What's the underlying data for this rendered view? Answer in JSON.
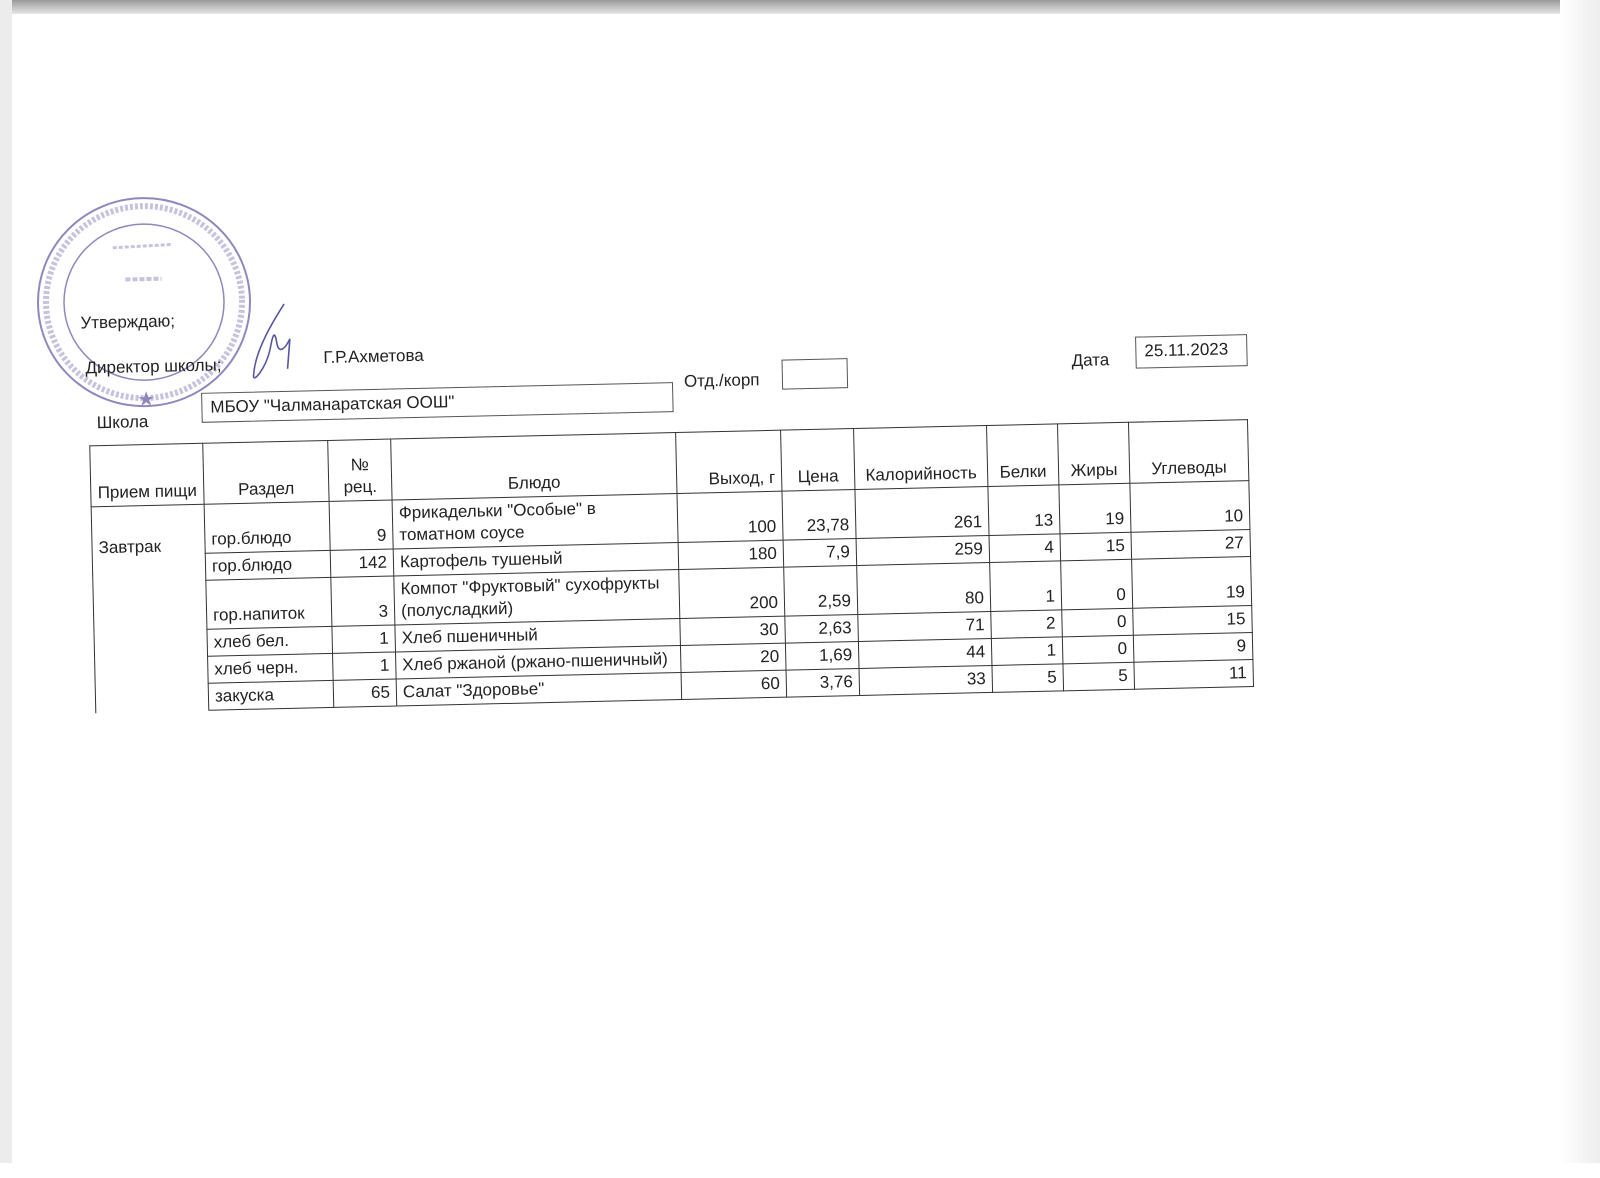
{
  "approval": {
    "approve": "Утверждаю;",
    "position": "Директор школы;",
    "name": "Г.Р.Ахметова"
  },
  "stamp": {
    "center": "МБОУ «Чалманаратская ООШ»",
    "ring": "МУНИЦИПАЛЬНОЕ БЮДЖЕТНОЕ ОБЩЕОБРАЗОВАТЕЛЬНОЕ УЧРЕЖДЕНИЕ «ЧАЛМАНАРАТСКАЯ ОСНОВНАЯ ОБЩЕОБРАЗОВАТЕЛЬНАЯ ШКОЛА» АКТАНЫШСКОГО",
    "ogrn": "ОГРН 1031632...",
    "inn": "ИНН 1604005718",
    "color": "#6b5fa8"
  },
  "header": {
    "school_label": "Школа",
    "school_value": "МБОУ \"Чалманаратская ООШ\"",
    "dept_label": "Отд./корп",
    "dept_value": "",
    "date_label": "Дата",
    "date_value": "25.11.2023"
  },
  "table": {
    "columns": [
      "Прием пищи",
      "Раздел",
      "№ рец.",
      "Блюдо",
      "Выход, г",
      "Цена",
      "Калорийность",
      "Белки",
      "Жиры",
      "Углеводы"
    ],
    "meal": "Завтрак",
    "rows": [
      {
        "section": "гор.блюдо",
        "recipe": "9",
        "dish": "Фрикадельки \"Особые\" в томатном соусе",
        "yield": "100",
        "price": "23,78",
        "kcal": "261",
        "protein": "13",
        "fat": "19",
        "carbs": "10"
      },
      {
        "section": "гор.блюдо",
        "recipe": "142",
        "dish": "Картофель тушеный",
        "yield": "180",
        "price": "7,9",
        "kcal": "259",
        "protein": "4",
        "fat": "15",
        "carbs": "27"
      },
      {
        "section": "гор.напиток",
        "recipe": "3",
        "dish": "Компот \"Фруктовый\" сухофрукты (полусладкий)",
        "yield": "200",
        "price": "2,59",
        "kcal": "80",
        "protein": "1",
        "fat": "0",
        "carbs": "19"
      },
      {
        "section": "хлеб бел.",
        "recipe": "1",
        "dish": "Хлеб пшеничный",
        "yield": "30",
        "price": "2,63",
        "kcal": "71",
        "protein": "2",
        "fat": "0",
        "carbs": "15"
      },
      {
        "section": "хлеб черн.",
        "recipe": "1",
        "dish": "Хлеб ржаной (ржано-пшеничный)",
        "yield": "20",
        "price": "1,69",
        "kcal": "44",
        "protein": "1",
        "fat": "0",
        "carbs": "9"
      },
      {
        "section": "закуска",
        "recipe": "65",
        "dish": "Салат \"Здоровье\"",
        "yield": "60",
        "price": "3,76",
        "kcal": "33",
        "protein": "5",
        "fat": "5",
        "carbs": "11"
      }
    ]
  }
}
